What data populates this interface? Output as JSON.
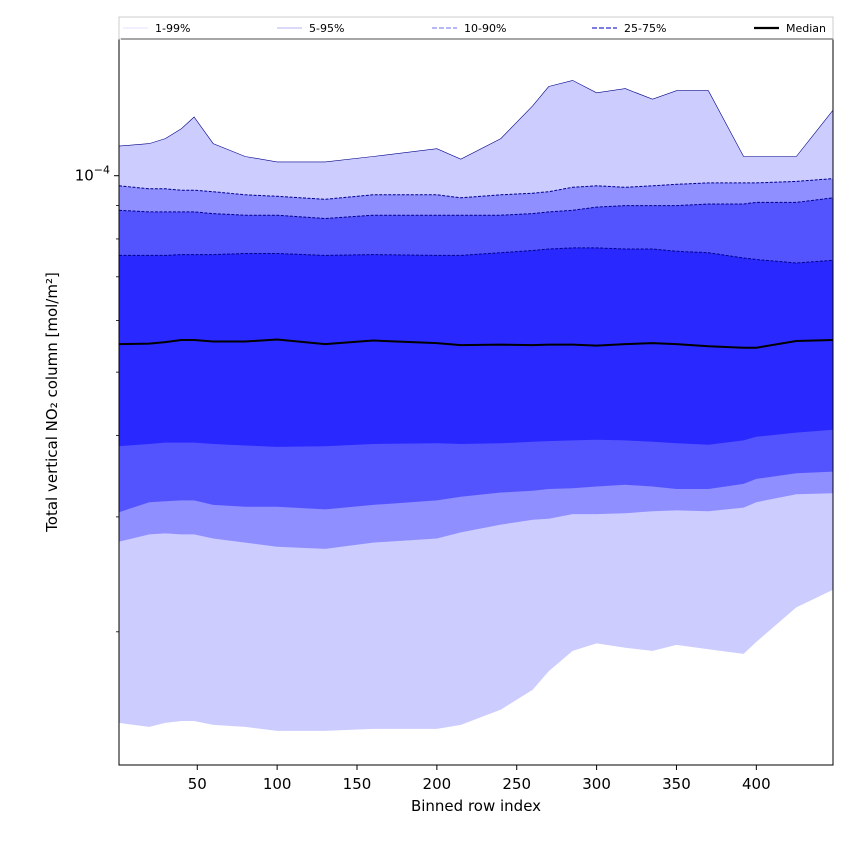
{
  "chart_data": {
    "type": "area",
    "title": "",
    "xlabel": "Binned row index",
    "ylabel": "Total vertical NO₂ column [mol/m²]",
    "y_scale": "log",
    "xlim": [
      1,
      448
    ],
    "ylim": [
      1.25e-05,
      0.000162
    ],
    "x_ticks": [
      50,
      100,
      150,
      200,
      250,
      300,
      350,
      400
    ],
    "x_tick_labels": [
      "50",
      "100",
      "150",
      "200",
      "250",
      "300",
      "350",
      "400"
    ],
    "y_tick_labels": [
      {
        "value": 0.0001,
        "label": "10",
        "exponent": "−4"
      }
    ],
    "y_minor_ticks": [
      2e-05,
      3e-05,
      4e-05,
      5e-05,
      6e-05,
      7e-05,
      8e-05,
      9e-05
    ],
    "legend": {
      "position": "top",
      "entries": [
        "1-99%",
        "5-95%",
        "10-90%",
        "25-75%",
        "Median"
      ]
    },
    "x": [
      1,
      20,
      30,
      40,
      48,
      60,
      80,
      100,
      130,
      160,
      200,
      215,
      240,
      260,
      270,
      285,
      300,
      318,
      335,
      350,
      370,
      392,
      400,
      425,
      448
    ],
    "bands": [
      {
        "name": "1-99%",
        "upper": [
          0.000111,
          0.000112,
          0.000114,
          0.000118,
          0.000123,
          0.000112,
          0.000107,
          0.000105,
          0.000105,
          0.000107,
          0.00011,
          0.000106,
          0.000114,
          0.000128,
          0.000137,
          0.00014,
          0.000134,
          0.000136,
          0.000131,
          0.000135,
          0.000135,
          0.000107,
          0.000107,
          0.000107,
          0.000126
        ],
        "lower": [
          1.45e-05,
          1.43e-05,
          1.45e-05,
          1.46e-05,
          1.46e-05,
          1.44e-05,
          1.43e-05,
          1.41e-05,
          1.41e-05,
          1.42e-05,
          1.42e-05,
          1.44e-05,
          1.52e-05,
          1.63e-05,
          1.74e-05,
          1.87e-05,
          1.92e-05,
          1.89e-05,
          1.87e-05,
          1.91e-05,
          1.88e-05,
          1.85e-05,
          1.93e-05,
          2.18e-05,
          2.32e-05
        ]
      },
      {
        "name": "5-95%",
        "upper": [
          9.65e-05,
          9.55e-05,
          9.55e-05,
          9.5e-05,
          9.5e-05,
          9.45e-05,
          9.35e-05,
          9.3e-05,
          9.2e-05,
          9.35e-05,
          9.35e-05,
          9.25e-05,
          9.35e-05,
          9.4e-05,
          9.45e-05,
          9.6e-05,
          9.65e-05,
          9.6e-05,
          9.65e-05,
          9.7e-05,
          9.75e-05,
          9.75e-05,
          9.75e-05,
          9.8e-05,
          9.9e-05
        ],
        "lower": [
          2.75e-05,
          2.82e-05,
          2.83e-05,
          2.82e-05,
          2.82e-05,
          2.78e-05,
          2.74e-05,
          2.7e-05,
          2.68e-05,
          2.74e-05,
          2.78e-05,
          2.84e-05,
          2.92e-05,
          2.97e-05,
          2.98e-05,
          3.03e-05,
          3.03e-05,
          3.04e-05,
          3.06e-05,
          3.07e-05,
          3.06e-05,
          3.1e-05,
          3.16e-05,
          3.25e-05,
          3.26e-05
        ]
      },
      {
        "name": "10-90%",
        "upper": [
          8.85e-05,
          8.8e-05,
          8.8e-05,
          8.8e-05,
          8.8e-05,
          8.75e-05,
          8.7e-05,
          8.7e-05,
          8.6e-05,
          8.7e-05,
          8.7e-05,
          8.7e-05,
          8.7e-05,
          8.75e-05,
          8.8e-05,
          8.85e-05,
          8.95e-05,
          9e-05,
          9e-05,
          9e-05,
          9.05e-05,
          9.05e-05,
          9.1e-05,
          9.1e-05,
          9.25e-05
        ],
        "lower": [
          3.05e-05,
          3.16e-05,
          3.17e-05,
          3.18e-05,
          3.18e-05,
          3.13e-05,
          3.11e-05,
          3.11e-05,
          3.08e-05,
          3.13e-05,
          3.18e-05,
          3.22e-05,
          3.27e-05,
          3.29e-05,
          3.31e-05,
          3.32e-05,
          3.34e-05,
          3.36e-05,
          3.34e-05,
          3.31e-05,
          3.31e-05,
          3.37e-05,
          3.43e-05,
          3.5e-05,
          3.52e-05
        ]
      },
      {
        "name": "25-75%",
        "upper": [
          7.55e-05,
          7.55e-05,
          7.55e-05,
          7.57e-05,
          7.57e-05,
          7.57e-05,
          7.6e-05,
          7.6e-05,
          7.55e-05,
          7.57e-05,
          7.55e-05,
          7.55e-05,
          7.62e-05,
          7.68e-05,
          7.72e-05,
          7.75e-05,
          7.75e-05,
          7.72e-05,
          7.72e-05,
          7.66e-05,
          7.62e-05,
          7.48e-05,
          7.44e-05,
          7.35e-05,
          7.42e-05
        ],
        "lower": [
          3.85e-05,
          3.88e-05,
          3.9e-05,
          3.9e-05,
          3.9e-05,
          3.88e-05,
          3.86e-05,
          3.84e-05,
          3.85e-05,
          3.88e-05,
          3.89e-05,
          3.88e-05,
          3.89e-05,
          3.91e-05,
          3.92e-05,
          3.93e-05,
          3.94e-05,
          3.93e-05,
          3.91e-05,
          3.89e-05,
          3.87e-05,
          3.93e-05,
          3.98e-05,
          4.04e-05,
          4.08e-05
        ]
      }
    ],
    "median": [
      5.52e-05,
      5.53e-05,
      5.56e-05,
      5.6e-05,
      5.6e-05,
      5.57e-05,
      5.57e-05,
      5.61e-05,
      5.52e-05,
      5.59e-05,
      5.54e-05,
      5.5e-05,
      5.51e-05,
      5.5e-05,
      5.51e-05,
      5.51e-05,
      5.49e-05,
      5.52e-05,
      5.54e-05,
      5.52e-05,
      5.48e-05,
      5.45e-05,
      5.45e-05,
      5.58e-05,
      5.6e-05
    ],
    "colors": {
      "1-99%": "#ccccff",
      "5-95%": "#8f8fff",
      "10-90%": "#5454ff",
      "25-75%": "#2929ff",
      "median": "#000000",
      "legend_1_99": "#e0e0ff",
      "legend_5_95": "#b4b4f0",
      "legend_10_90": "#8c8cf0",
      "legend_25_75": "#5050dc",
      "band_outline": "#00008b"
    }
  }
}
